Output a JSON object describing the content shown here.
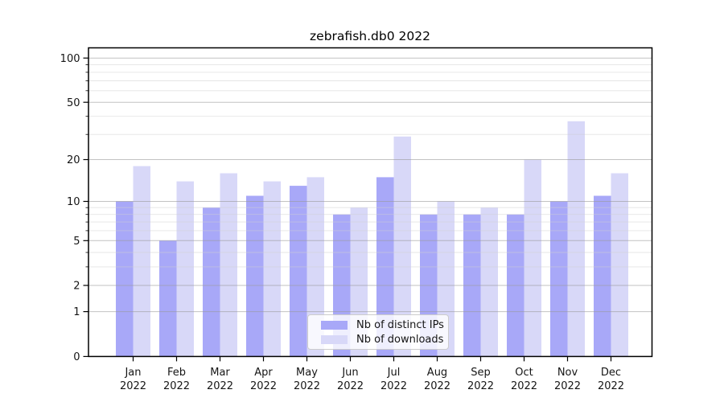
{
  "chart_data": {
    "type": "bar",
    "title": "zebrafish.db0 2022",
    "categories": [
      "Jan",
      "Feb",
      "Mar",
      "Apr",
      "May",
      "Jun",
      "Jul",
      "Aug",
      "Sep",
      "Oct",
      "Nov",
      "Dec"
    ],
    "year_label": "2022",
    "series": [
      {
        "name": "Nb of distinct IPs",
        "color": "#a8a8f8",
        "values": [
          10,
          5,
          9,
          11,
          13,
          8,
          15,
          8,
          8,
          8,
          10,
          11
        ]
      },
      {
        "name": "Nb of downloads",
        "color": "#d8d8f8",
        "values": [
          18,
          14,
          16,
          14,
          15,
          9,
          29,
          10,
          9,
          20,
          37,
          16
        ]
      }
    ],
    "xlabel": "",
    "ylabel": "",
    "y_axis": {
      "scale": "log10(v+1)",
      "tick_labels": [
        "100",
        "50",
        "20",
        "10",
        "5",
        "2",
        "1",
        "0"
      ],
      "ticks": [
        100,
        50,
        20,
        10,
        5,
        2,
        1,
        0
      ],
      "major_gridlines": [
        1,
        2,
        5,
        10,
        20,
        50,
        100
      ],
      "minor_gridlines": [
        3,
        4,
        6,
        7,
        8,
        9,
        30,
        40,
        60,
        70,
        80,
        90
      ],
      "ylim": [
        0,
        116
      ]
    },
    "grid": true,
    "legend": {
      "position": "lower center",
      "entries": [
        "Nb of distinct IPs",
        "Nb of downloads"
      ]
    },
    "colors": {
      "bar_dark": "#a8a8f8",
      "bar_light": "#d8d8f8",
      "major_grid": "#9a9a9a",
      "minor_grid": "#cfcfcf",
      "spine": "#000000",
      "legend_border": "#cccccc"
    }
  }
}
